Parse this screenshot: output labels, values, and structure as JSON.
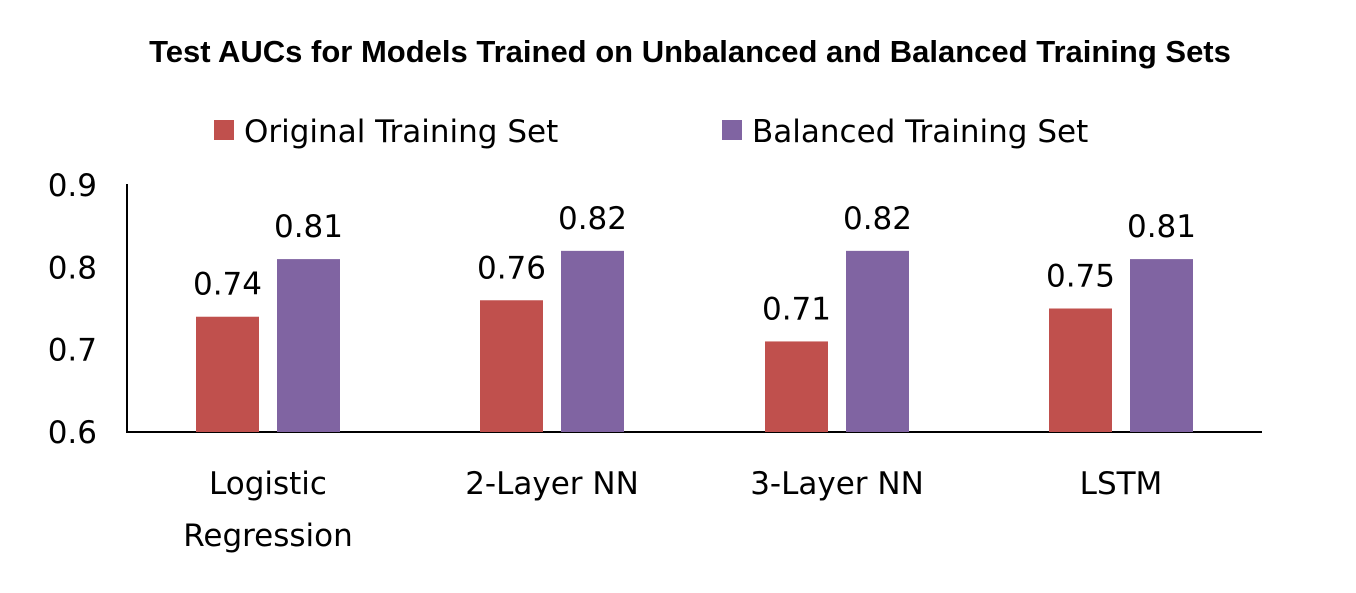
{
  "chart_data": {
    "type": "bar",
    "title": "Test AUCs for Models Trained on Unbalanced and Balanced Training Sets",
    "categories": [
      [
        "Logistic",
        "Regression"
      ],
      [
        "2-Layer NN"
      ],
      [
        "3-Layer NN"
      ],
      [
        "LSTM"
      ]
    ],
    "series": [
      {
        "name": "Original Training Set",
        "color": "#c0504d",
        "values": [
          0.74,
          0.76,
          0.71,
          0.75
        ]
      },
      {
        "name": "Balanced Training Set",
        "color": "#8064a2",
        "values": [
          0.81,
          0.82,
          0.82,
          0.81
        ]
      }
    ],
    "ylim": [
      0.6,
      0.9
    ],
    "yticks": [
      "0.6",
      "0.7",
      "0.8",
      "0.9"
    ],
    "legend": "top",
    "grid": false
  }
}
